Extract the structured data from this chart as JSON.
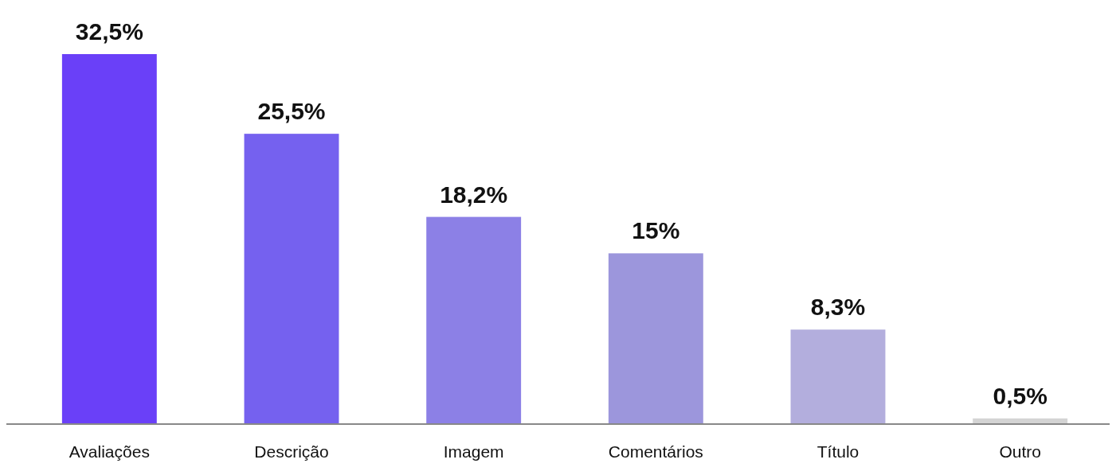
{
  "chart_data": {
    "type": "bar",
    "categories": [
      "Avaliações",
      "Descrição",
      "Imagem",
      "Comentários",
      "Título",
      "Outro"
    ],
    "values": [
      32.5,
      25.5,
      18.2,
      15,
      8.3,
      0.5
    ],
    "colors": [
      "#6a40f8",
      "#7561ef",
      "#8c80e6",
      "#9c96dc",
      "#b3aedd",
      "#d4d4d4"
    ],
    "value_labels": [
      "32,5%",
      "25,5%",
      "18,2%",
      "15%",
      "8,3%",
      "0,5%"
    ]
  }
}
